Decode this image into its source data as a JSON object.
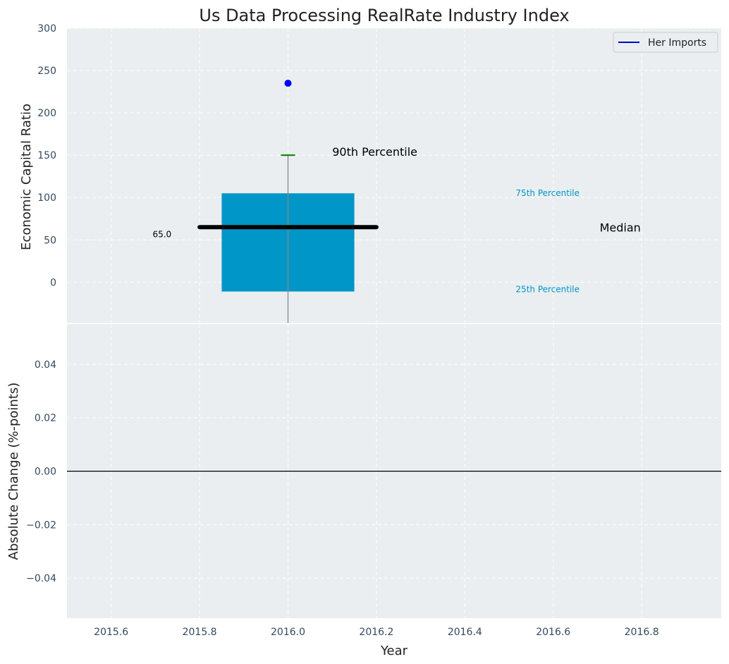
{
  "chart_data": {
    "type": "bar",
    "title": "Us Data Processing RealRate Industry Index",
    "xlabel": "Year",
    "top_panel": {
      "ylabel": "Economic Capital Ratio",
      "ylim": [
        -48,
        300
      ],
      "yticks": [
        0,
        50,
        100,
        150,
        200,
        250,
        300
      ],
      "xlim": [
        2015.5,
        2016.98
      ],
      "box": {
        "x": 2016.0,
        "x_start": 2015.85,
        "x_end": 2016.15,
        "p25": -11,
        "p75": 105,
        "median": 65.0,
        "median_x_range": [
          2015.8,
          2016.2
        ],
        "whisker_low": -48,
        "p90": 150,
        "outlier": 235
      },
      "colors": {
        "box": "#0096c7",
        "median_line": "#000000",
        "p90_cap": "#008000",
        "outlier": "#0000ff",
        "whisker": "#888888",
        "percentile_text": "#0096c7"
      },
      "annotations": {
        "p90_label": "90th Percentile",
        "p75_label": "75th Percentile",
        "median_label": "Median",
        "p25_label": "25th Percentile",
        "median_value_label": "65.0"
      },
      "legend": {
        "position": "upper right",
        "entries": [
          {
            "label": "Her Imports",
            "color": "#0000cd"
          }
        ]
      },
      "grid": true
    },
    "bottom_panel": {
      "ylabel": "Absolute Change (%-points)",
      "ylim": [
        -0.055,
        0.055
      ],
      "yticks": [
        -0.04,
        -0.02,
        0.0,
        0.02,
        0.04
      ],
      "ytick_labels": [
        "−0.04",
        "−0.02",
        "0.00",
        "0.02",
        "0.04"
      ],
      "zero_line": 0.0,
      "grid": true
    },
    "xticks": [
      2015.6,
      2015.8,
      2016.0,
      2016.2,
      2016.4,
      2016.6,
      2016.8
    ],
    "xtick_labels": [
      "2015.6",
      "2015.8",
      "2016.0",
      "2016.2",
      "2016.4",
      "2016.6",
      "2016.8"
    ],
    "background": "#eaeef0"
  }
}
